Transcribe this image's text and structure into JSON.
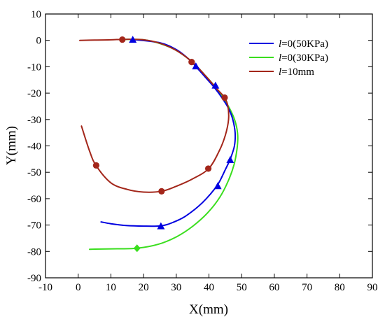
{
  "chart_data": {
    "type": "line",
    "xlabel": "X(mm)",
    "ylabel": "Y(mm)",
    "xlim": [
      -10,
      90
    ],
    "ylim": [
      -90,
      10
    ],
    "x_ticks": [
      -10,
      0,
      10,
      20,
      30,
      40,
      50,
      60,
      70,
      80,
      90
    ],
    "y_ticks": [
      10,
      0,
      -10,
      -20,
      -30,
      -40,
      -50,
      -60,
      -70,
      -80,
      -90
    ],
    "grid": false,
    "legend_position": "top-right",
    "series": [
      {
        "name_prefix": "l",
        "name_rest": "=0(50KPa)",
        "color": "#0000e0",
        "marker": "triangle",
        "points": [
          [
            17,
            0.3
          ],
          [
            25,
            -0.9
          ],
          [
            30,
            -3.5
          ],
          [
            34,
            -7.3
          ],
          [
            37,
            -11.3
          ],
          [
            40,
            -15.5
          ],
          [
            42,
            -18.4
          ],
          [
            44,
            -21.8
          ],
          [
            46,
            -25.8
          ],
          [
            47.3,
            -30
          ],
          [
            48,
            -35
          ],
          [
            47.8,
            -40
          ],
          [
            46.5,
            -45
          ],
          [
            45,
            -49
          ],
          [
            42.5,
            -55
          ],
          [
            38,
            -61.5
          ],
          [
            33,
            -66.5
          ],
          [
            29,
            -69
          ],
          [
            25.3,
            -70.3
          ],
          [
            20,
            -70.4
          ],
          [
            15,
            -70.2
          ],
          [
            10,
            -69.5
          ],
          [
            7,
            -68.8
          ]
        ],
        "markers": [
          [
            16.7,
            0.3
          ],
          [
            36,
            -9.8
          ],
          [
            42,
            -17.1
          ],
          [
            46.5,
            -45.3
          ],
          [
            42.7,
            -55.2
          ],
          [
            25.3,
            -70.4
          ]
        ]
      },
      {
        "name_prefix": "l",
        "name_rest": "=0(30KPa)",
        "color": "#3ade1e",
        "marker": "diamond",
        "points": [
          [
            14,
            0.4
          ],
          [
            20,
            0.2
          ],
          [
            25,
            -1.2
          ],
          [
            30,
            -3.8
          ],
          [
            35,
            -8.3
          ],
          [
            39,
            -13.5
          ],
          [
            42.5,
            -18.5
          ],
          [
            45,
            -23
          ],
          [
            47,
            -27.5
          ],
          [
            48.2,
            -31.5
          ],
          [
            48.8,
            -36
          ],
          [
            48.6,
            -41
          ],
          [
            47.7,
            -47
          ],
          [
            46,
            -53
          ],
          [
            43.3,
            -59.5
          ],
          [
            39.5,
            -65.5
          ],
          [
            35,
            -70.5
          ],
          [
            30,
            -74.5
          ],
          [
            24.5,
            -77.3
          ],
          [
            18,
            -78.8
          ],
          [
            12,
            -79
          ],
          [
            7,
            -79.1
          ],
          [
            3.5,
            -79.2
          ]
        ],
        "markers": [
          [
            18,
            -78.8
          ]
        ]
      },
      {
        "name_prefix": "l",
        "name_rest": "=10mm",
        "color": "#a3261a",
        "marker": "circle",
        "points": [
          [
            0.5,
            0
          ],
          [
            5,
            0.1
          ],
          [
            10,
            0.2
          ],
          [
            14,
            0.4
          ],
          [
            20,
            0.2
          ],
          [
            25,
            -1.1
          ],
          [
            30,
            -3.8
          ],
          [
            35,
            -8.3
          ],
          [
            39,
            -13.5
          ],
          [
            42.5,
            -18.5
          ],
          [
            44.8,
            -21.7
          ],
          [
            45.8,
            -25
          ],
          [
            46,
            -30
          ],
          [
            45,
            -36
          ],
          [
            43.3,
            -41.5
          ],
          [
            40,
            -48.5
          ],
          [
            35,
            -52.5
          ],
          [
            30,
            -55.3
          ],
          [
            25.5,
            -57.2
          ],
          [
            20,
            -57.5
          ],
          [
            15,
            -56.5
          ],
          [
            10,
            -54
          ],
          [
            5.5,
            -47.5
          ],
          [
            3.5,
            -42
          ],
          [
            1,
            -32.5
          ]
        ],
        "markers": [
          [
            13.5,
            0.3
          ],
          [
            34.7,
            -8.2
          ],
          [
            44.8,
            -21.7
          ],
          [
            39.8,
            -48.6
          ],
          [
            25.5,
            -57.2
          ],
          [
            5.5,
            -47.4
          ]
        ]
      }
    ]
  }
}
